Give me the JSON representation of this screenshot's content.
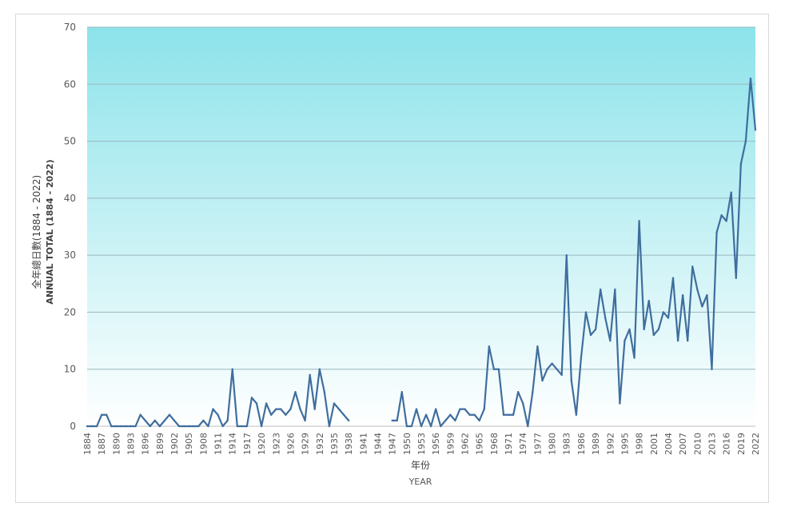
{
  "chart_data": {
    "type": "line",
    "xlabel_cn": "年份",
    "xlabel_en": "YEAR",
    "ylabel_cn": "全年總日數(1884 - 2022)",
    "ylabel_en": "ANNUAL TOTAL (1884 - 2022)",
    "ylim": [
      0,
      70
    ],
    "yticks": [
      0,
      10,
      20,
      30,
      40,
      50,
      60,
      70
    ],
    "x_range": [
      1884,
      2022
    ],
    "xtick_labels": [
      "1884",
      "1887",
      "1890",
      "1893",
      "1896",
      "1899",
      "1902",
      "1905",
      "1908",
      "1911",
      "1914",
      "1917",
      "1920",
      "1923",
      "1926",
      "1929",
      "1932",
      "1935",
      "1938",
      "1941",
      "1944",
      "1947",
      "1950",
      "1953",
      "1956",
      "1959",
      "1962",
      "1965",
      "1968",
      "1971",
      "1974",
      "1977",
      "1980",
      "1983",
      "1986",
      "1989",
      "1992",
      "1995",
      "1998",
      "2001",
      "2004",
      "2007",
      "2010",
      "2013",
      "2016",
      "2019",
      "2022"
    ],
    "grid": true,
    "line_color": "#3f6e9e",
    "background_gradient": [
      "#8ce3ea",
      "#ffffff"
    ],
    "series": [
      {
        "name": "",
        "x": [
          1884,
          1885,
          1886,
          1887,
          1888,
          1889,
          1890,
          1891,
          1892,
          1893,
          1894,
          1895,
          1896,
          1897,
          1898,
          1899,
          1900,
          1901,
          1902,
          1903,
          1904,
          1905,
          1906,
          1907,
          1908,
          1909,
          1910,
          1911,
          1912,
          1913,
          1914,
          1915,
          1916,
          1917,
          1918,
          1919,
          1920,
          1921,
          1922,
          1923,
          1924,
          1925,
          1926,
          1927,
          1928,
          1929,
          1930,
          1931,
          1932,
          1933,
          1934,
          1935,
          1936,
          1937,
          1938,
          1939,
          1940,
          1941,
          1942,
          1943,
          1944,
          1945,
          1946,
          1947,
          1948,
          1949,
          1950,
          1951,
          1952,
          1953,
          1954,
          1955,
          1956,
          1957,
          1958,
          1959,
          1960,
          1961,
          1962,
          1963,
          1964,
          1965,
          1966,
          1967,
          1968,
          1969,
          1970,
          1971,
          1972,
          1973,
          1974,
          1975,
          1976,
          1977,
          1978,
          1979,
          1980,
          1981,
          1982,
          1983,
          1984,
          1985,
          1986,
          1987,
          1988,
          1989,
          1990,
          1991,
          1992,
          1993,
          1994,
          1995,
          1996,
          1997,
          1998,
          1999,
          2000,
          2001,
          2002,
          2003,
          2004,
          2005,
          2006,
          2007,
          2008,
          2009,
          2010,
          2011,
          2012,
          2013,
          2014,
          2015,
          2016,
          2017,
          2018,
          2019,
          2020,
          2021,
          2022
        ],
        "values": [
          0,
          0,
          0,
          2,
          2,
          0,
          0,
          0,
          0,
          0,
          0,
          2,
          1,
          0,
          1,
          0,
          1,
          2,
          1,
          0,
          0,
          0,
          0,
          0,
          1,
          0,
          3,
          2,
          0,
          1,
          10,
          0,
          0,
          0,
          5,
          4,
          0,
          4,
          2,
          3,
          3,
          2,
          3,
          6,
          3,
          1,
          9,
          3,
          10,
          6,
          0,
          4,
          3,
          2,
          1,
          null,
          null,
          null,
          null,
          null,
          null,
          null,
          null,
          1,
          1,
          6,
          0,
          0,
          3,
          0,
          2,
          0,
          3,
          0,
          1,
          2,
          1,
          3,
          3,
          2,
          2,
          1,
          3,
          14,
          10,
          10,
          2,
          2,
          2,
          6,
          4,
          0,
          6,
          14,
          8,
          10,
          11,
          10,
          9,
          30,
          8,
          2,
          12,
          20,
          16,
          17,
          24,
          19,
          15,
          24,
          4,
          15,
          17,
          12,
          36,
          17,
          22,
          16,
          17,
          20,
          19,
          26,
          15,
          23,
          15,
          28,
          24,
          21,
          23,
          10,
          34,
          37,
          36,
          41,
          26,
          46,
          50,
          61,
          52
        ]
      }
    ]
  }
}
